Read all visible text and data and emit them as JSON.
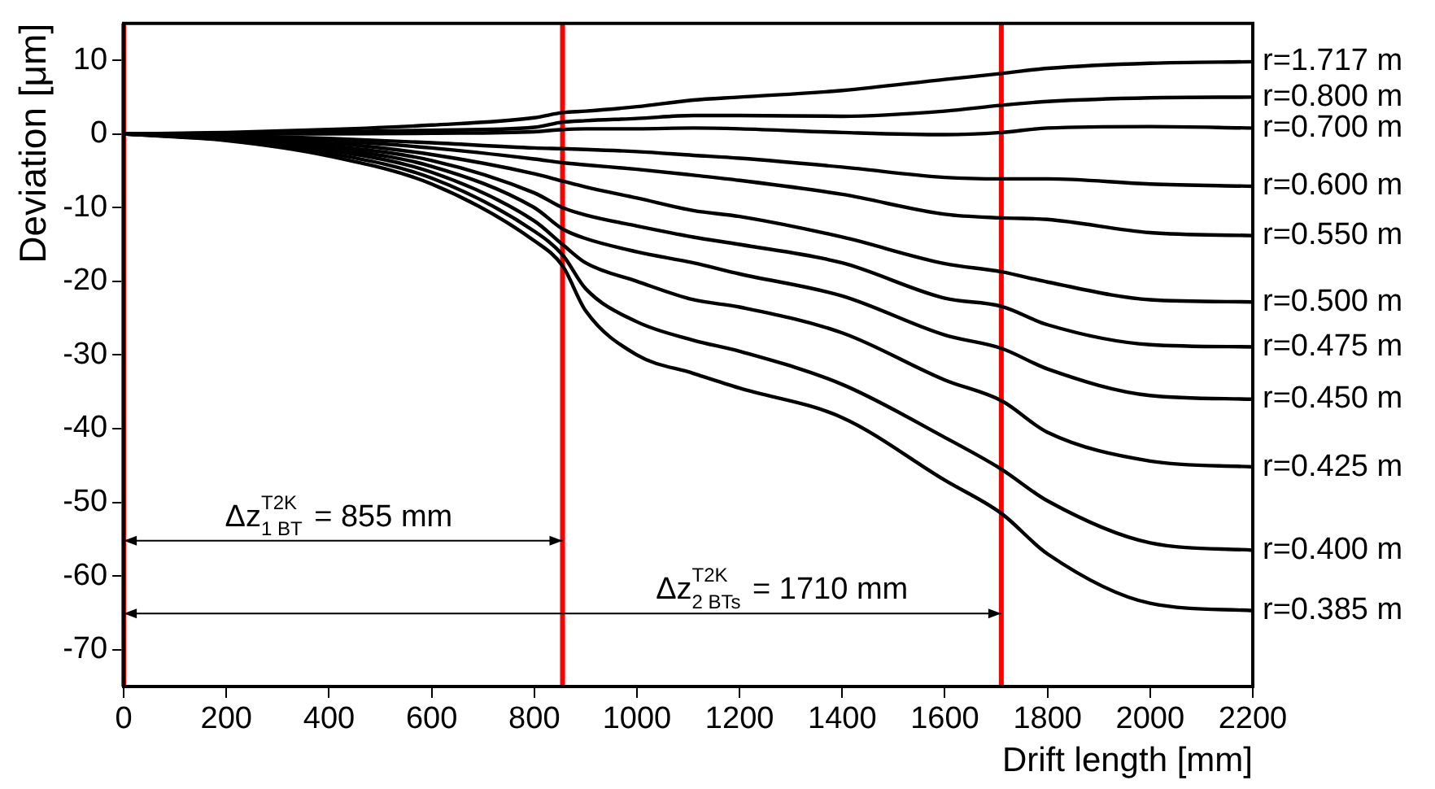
{
  "chart_data": {
    "type": "line",
    "xlabel": "Drift length [mm]",
    "ylabel": "Deviation [μm]",
    "x": [
      0,
      200,
      400,
      600,
      800,
      855,
      900,
      1000,
      1110,
      1200,
      1400,
      1600,
      1710,
      1800,
      2000,
      2200
    ],
    "xlim": [
      0,
      2200
    ],
    "xticks": [
      0,
      200,
      400,
      600,
      800,
      1000,
      1200,
      1400,
      1600,
      1800,
      2000,
      2200
    ],
    "ylim": [
      -75,
      15
    ],
    "yticks": [
      -70,
      -60,
      -50,
      -40,
      -30,
      -20,
      -10,
      0,
      10
    ],
    "grid": false,
    "legend": false,
    "marker": "none",
    "line_style": "solid",
    "series": [
      {
        "name": "r=1.717 m",
        "color": "#000000",
        "values": [
          0,
          0.2,
          0.6,
          1.2,
          2.2,
          2.9,
          3.1,
          3.7,
          4.6,
          5.0,
          5.9,
          7.4,
          8.2,
          8.9,
          9.6,
          9.8
        ]
      },
      {
        "name": "r=0.800 m",
        "color": "#000000",
        "values": [
          0,
          0.1,
          0.3,
          0.5,
          0.9,
          1.6,
          1.8,
          2.1,
          2.5,
          2.5,
          2.4,
          3.1,
          3.9,
          4.4,
          4.9,
          5.0
        ]
      },
      {
        "name": "r=0.700 m",
        "color": "#000000",
        "values": [
          0,
          0,
          0,
          0.1,
          0.3,
          0.6,
          0.7,
          0.7,
          0.8,
          0.7,
          0.2,
          -0.1,
          0.2,
          0.8,
          1.0,
          0.8
        ]
      },
      {
        "name": "r=0.600 m",
        "color": "#000000",
        "values": [
          0,
          -0.2,
          -0.6,
          -1.2,
          -1.9,
          -2.0,
          -2.1,
          -2.4,
          -2.9,
          -3.3,
          -4.5,
          -5.9,
          -6.1,
          -6.1,
          -6.8,
          -7.1
        ]
      },
      {
        "name": "r=0.550 m",
        "color": "#000000",
        "values": [
          0,
          -0.3,
          -0.9,
          -1.9,
          -3.4,
          -3.9,
          -4.2,
          -4.8,
          -5.6,
          -6.3,
          -8.2,
          -10.9,
          -11.4,
          -11.6,
          -13.4,
          -13.8
        ]
      },
      {
        "name": "r=0.500 m",
        "color": "#000000",
        "values": [
          0,
          -0.4,
          -1.2,
          -2.8,
          -5.4,
          -6.4,
          -7.2,
          -8.7,
          -10.4,
          -11.2,
          -14.0,
          -17.6,
          -18.7,
          -20.1,
          -22.5,
          -22.8
        ]
      },
      {
        "name": "r=0.475 m",
        "color": "#000000",
        "values": [
          0,
          -0.5,
          -1.6,
          -3.6,
          -8.0,
          -10.0,
          -11.0,
          -12.5,
          -14.0,
          -15.0,
          -17.5,
          -22.3,
          -23.4,
          -25.9,
          -28.6,
          -28.9
        ]
      },
      {
        "name": "r=0.450 m",
        "color": "#000000",
        "values": [
          0,
          -0.6,
          -1.9,
          -4.4,
          -10.0,
          -12.9,
          -14.2,
          -16.0,
          -17.5,
          -19.0,
          -22.0,
          -27.3,
          -29.1,
          -31.9,
          -35.5,
          -36.0
        ]
      },
      {
        "name": "r=0.425 m",
        "color": "#000000",
        "values": [
          0,
          -0.7,
          -2.2,
          -5.2,
          -11.8,
          -15.0,
          -17.5,
          -20.0,
          -22.5,
          -23.5,
          -27.0,
          -33.4,
          -36.2,
          -40.5,
          -44.4,
          -45.2
        ]
      },
      {
        "name": "r=0.400 m",
        "color": "#000000",
        "values": [
          0,
          -0.8,
          -2.6,
          -6.0,
          -13.2,
          -16.4,
          -21.0,
          -25.5,
          -28.0,
          -29.5,
          -34.0,
          -41.2,
          -45.5,
          -49.8,
          -55.5,
          -56.5
        ]
      },
      {
        "name": "r=0.385 m",
        "color": "#000000",
        "values": [
          0,
          -0.9,
          -3.0,
          -6.8,
          -14.5,
          -17.9,
          -24.0,
          -30.0,
          -32.5,
          -34.5,
          -38.5,
          -47.0,
          -51.5,
          -57.0,
          -63.7,
          -64.7
        ]
      }
    ],
    "ref_lines": [
      {
        "axis": "x",
        "value": 0,
        "color": "#ff0000"
      },
      {
        "axis": "x",
        "value": 855,
        "color": "#ff0000"
      },
      {
        "axis": "x",
        "value": 1710,
        "color": "#ff0000"
      }
    ],
    "annotations": [
      "Δz$^{T2K}$$_{1 BT}$ = 855 mm",
      "Δz$^{T2K}$$_{2 BTs}$ = 1710 mm"
    ]
  }
}
